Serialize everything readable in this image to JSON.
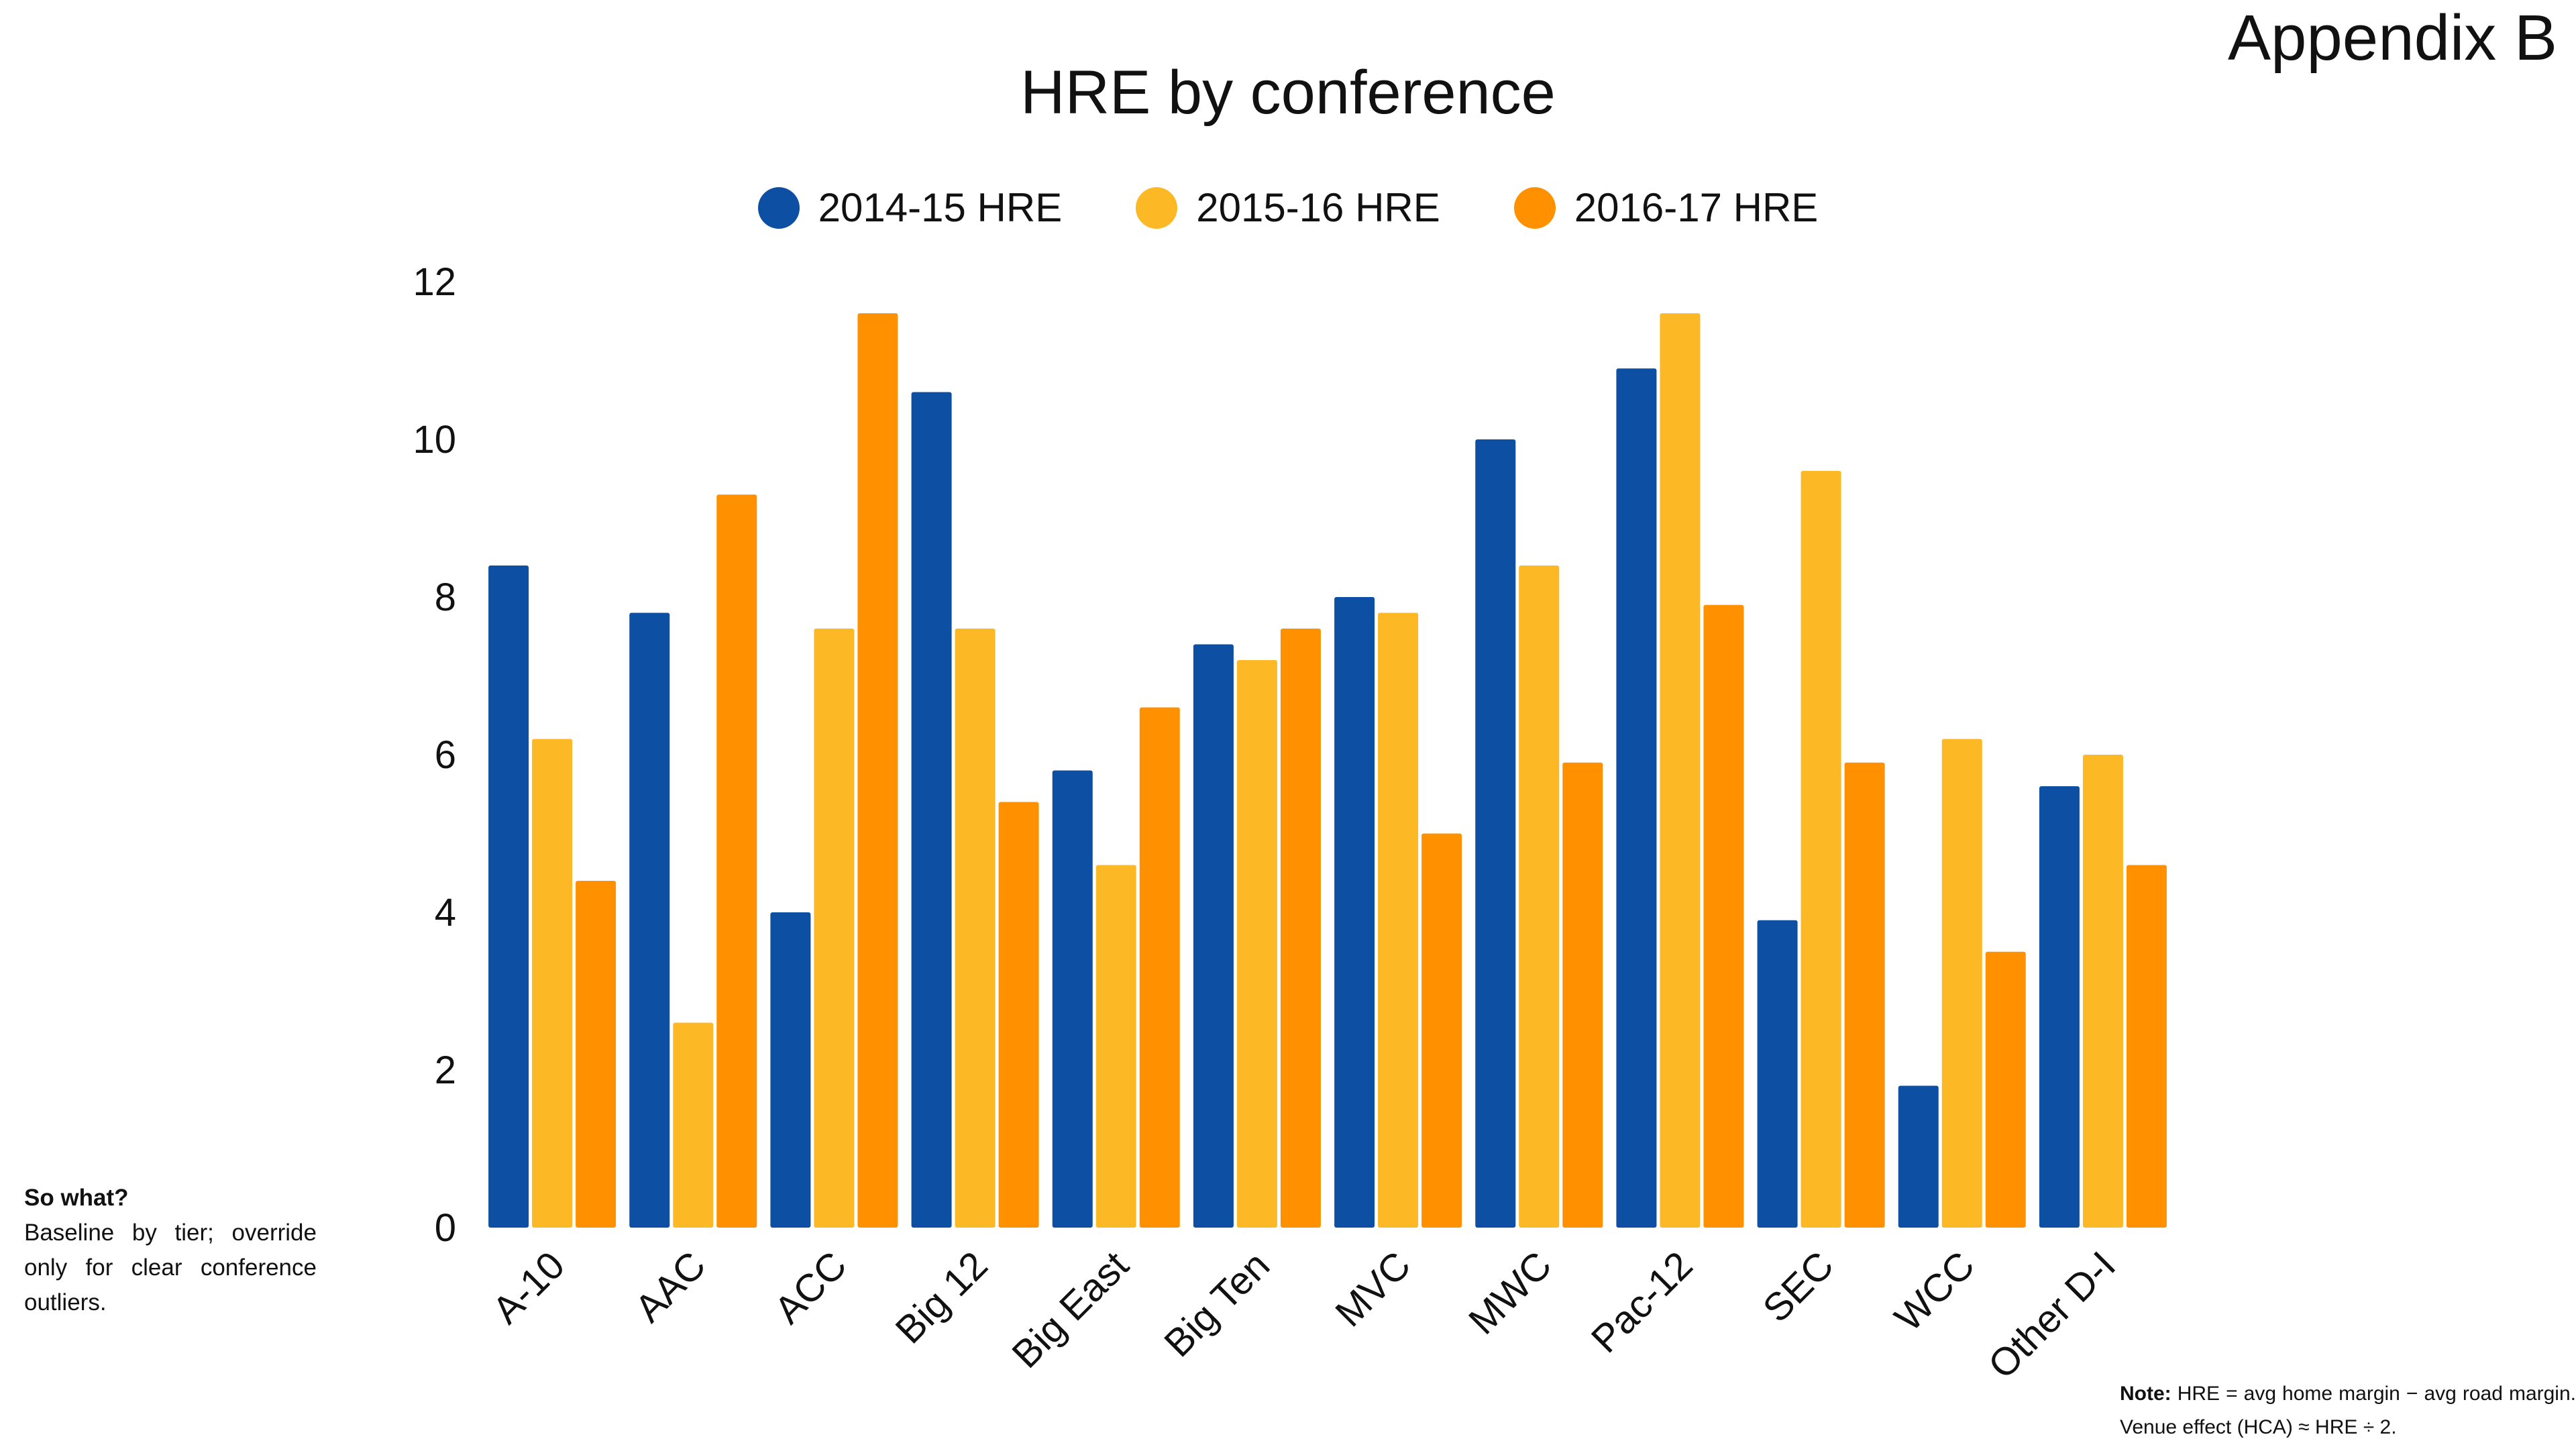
{
  "page": {
    "appendix_label": "Appendix B"
  },
  "chart_data": {
    "type": "bar",
    "title": "HRE by conference",
    "xlabel": "",
    "ylabel": "",
    "categories": [
      "A-10",
      "AAC",
      "ACC",
      "Big 12",
      "Big East",
      "Big Ten",
      "MVC",
      "MWC",
      "Pac-12",
      "SEC",
      "WCC",
      "Other D-I"
    ],
    "series": [
      {
        "name": "2014-15 HRE",
        "color": "#0d4fa3",
        "values": [
          8.4,
          7.8,
          4.0,
          10.6,
          5.8,
          7.4,
          8.0,
          10.0,
          10.9,
          3.9,
          1.8,
          5.6
        ]
      },
      {
        "name": "2015-16 HRE",
        "color": "#fdb825",
        "values": [
          6.2,
          2.6,
          7.6,
          7.6,
          4.6,
          7.2,
          7.8,
          8.4,
          11.6,
          9.6,
          6.2,
          6.0
        ]
      },
      {
        "name": "2016-17 HRE",
        "color": "#ff9100",
        "values": [
          4.4,
          9.3,
          11.6,
          5.4,
          6.6,
          7.6,
          5.0,
          5.9,
          7.9,
          5.9,
          3.5,
          4.6
        ]
      }
    ],
    "ylim": [
      0,
      12
    ],
    "yticks": [
      0,
      2,
      4,
      6,
      8,
      10,
      12
    ],
    "grid": false,
    "legend_position": "top"
  },
  "notes": {
    "side_heading": "So what?",
    "side_text": "Baseline by tier; override only for clear conference outliers.",
    "foot_heading": "Note:",
    "foot_text": "HRE = avg home margin − avg road margin. Venue effect (HCA) ≈ HRE ÷ 2."
  }
}
